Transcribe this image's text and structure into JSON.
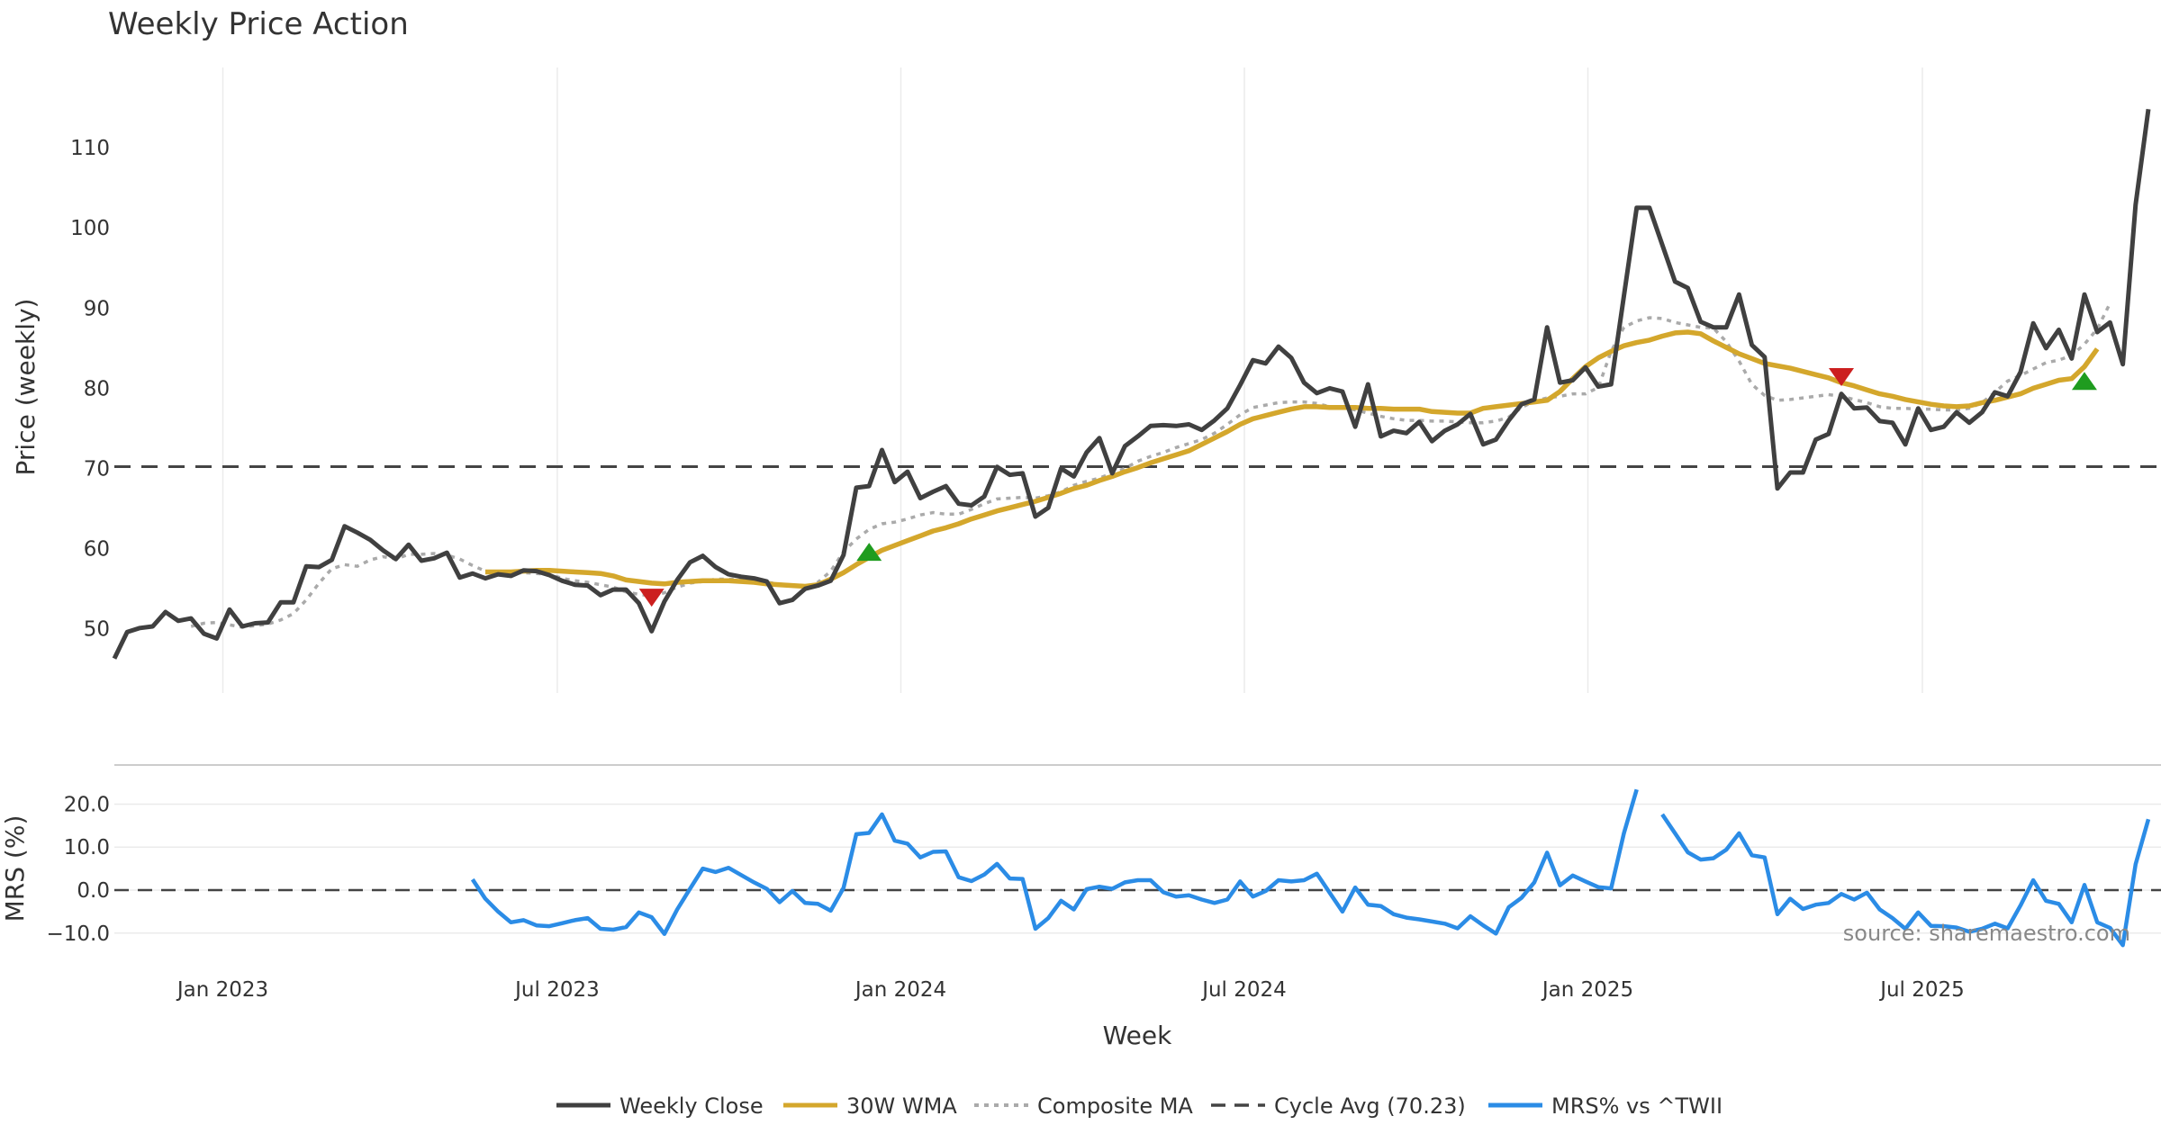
{
  "chart_data": {
    "type": "line",
    "title": "Weekly Price Action",
    "source": "source: sharemaestro.com",
    "xlabel": "Week",
    "x_ticks": [
      "Jan 2023",
      "Jul 2023",
      "Jan 2024",
      "Jul 2024",
      "Jan 2025",
      "Jul 2025"
    ],
    "price_panel": {
      "ylabel": "Price (weekly)",
      "y_ticks": [
        50,
        60,
        70,
        80,
        90,
        100,
        110
      ],
      "ylim": [
        42,
        120
      ],
      "weekly_close": [
        46.3,
        49.6,
        50.1,
        50.3,
        52.1,
        51.0,
        51.3,
        49.4,
        48.8,
        52.4,
        50.3,
        50.7,
        50.8,
        53.3,
        53.3,
        57.8,
        57.7,
        58.6,
        62.8,
        62.0,
        61.1,
        59.8,
        58.7,
        60.5,
        58.5,
        58.8,
        59.5,
        56.4,
        56.9,
        56.3,
        56.8,
        56.6,
        57.3,
        57.2,
        56.7,
        56.0,
        55.5,
        55.4,
        54.2,
        54.9,
        54.9,
        53.2,
        49.7,
        53.4,
        56.1,
        58.3,
        59.1,
        57.7,
        56.8,
        56.5,
        56.3,
        55.9,
        53.2,
        53.6,
        55.0,
        55.4,
        56.0,
        59.2,
        67.6,
        67.8,
        72.3,
        68.3,
        69.6,
        66.3,
        67.1,
        67.8,
        65.6,
        65.4,
        66.5,
        70.2,
        69.2,
        69.4,
        64.0,
        65.1,
        70.0,
        69.0,
        72.0,
        73.8,
        69.4,
        72.8,
        74.0,
        75.3,
        75.4,
        75.3,
        75.5,
        74.8,
        76.0,
        77.5,
        80.4,
        83.5,
        83.1,
        85.2,
        83.8,
        80.7,
        79.4,
        80.0,
        79.6,
        75.2,
        80.5,
        74.0,
        74.7,
        74.4,
        75.8,
        73.4,
        74.7,
        75.5,
        76.8,
        73.0,
        73.6,
        76.0,
        78.0,
        78.6,
        87.6,
        80.7,
        81.0,
        82.6,
        80.2,
        80.5,
        91.5,
        102.5,
        102.5,
        97.9,
        93.3,
        92.5,
        88.3,
        87.6,
        87.6,
        91.7,
        85.4,
        83.9,
        67.5,
        69.5,
        69.5,
        73.6,
        74.3,
        79.3,
        77.5,
        77.6,
        75.9,
        75.7,
        73.0,
        77.5,
        74.8,
        75.2,
        77.0,
        75.7,
        77.0,
        79.5,
        79.0,
        82.0,
        88.1,
        85.0,
        87.3,
        83.7,
        91.7,
        87.0,
        88.2,
        83.0,
        102.9,
        114.8
      ],
      "wma_30w": [
        null,
        null,
        null,
        null,
        null,
        null,
        null,
        null,
        null,
        null,
        null,
        null,
        null,
        null,
        null,
        null,
        null,
        null,
        null,
        null,
        null,
        null,
        null,
        null,
        null,
        null,
        null,
        null,
        null,
        57.1,
        57.1,
        57.1,
        57.2,
        57.3,
        57.3,
        57.2,
        57.1,
        57.0,
        56.9,
        56.6,
        56.1,
        55.9,
        55.7,
        55.6,
        55.8,
        55.9,
        56.0,
        56.0,
        56.0,
        55.9,
        55.8,
        55.6,
        55.5,
        55.4,
        55.3,
        55.5,
        56.2,
        57.0,
        58.0,
        58.9,
        59.8,
        60.4,
        61.0,
        61.6,
        62.2,
        62.6,
        63.1,
        63.7,
        64.2,
        64.7,
        65.1,
        65.5,
        65.9,
        66.4,
        66.9,
        67.5,
        67.9,
        68.5,
        69.0,
        69.6,
        70.1,
        70.7,
        71.2,
        71.7,
        72.2,
        73.0,
        73.8,
        74.6,
        75.5,
        76.2,
        76.6,
        77.0,
        77.4,
        77.7,
        77.7,
        77.6,
        77.6,
        77.6,
        77.5,
        77.5,
        77.4,
        77.4,
        77.4,
        77.1,
        77.0,
        76.9,
        76.9,
        77.5,
        77.7,
        77.9,
        78.1,
        78.3,
        78.5,
        79.6,
        81.2,
        82.7,
        83.8,
        84.6,
        85.3,
        85.7,
        86.0,
        86.5,
        86.9,
        87.0,
        86.8,
        85.9,
        85.1,
        84.3,
        83.7,
        83.1,
        82.8,
        82.5,
        82.1,
        81.7,
        81.3,
        80.7,
        80.3,
        79.8,
        79.3,
        79.0,
        78.6,
        78.3,
        78.0,
        77.8,
        77.7,
        77.8,
        78.2,
        78.5,
        78.9,
        79.3,
        80.0,
        80.5,
        81.0,
        81.2,
        82.7,
        84.9
      ],
      "composite_ma": [
        null,
        null,
        null,
        null,
        null,
        null,
        50.3,
        50.7,
        50.8,
        50.5,
        50.2,
        50.4,
        50.6,
        51.1,
        51.9,
        53.6,
        55.7,
        57.5,
        58.0,
        57.8,
        58.6,
        59.0,
        58.7,
        59.3,
        59.3,
        59.4,
        59.2,
        58.7,
        57.9,
        57.2,
        57.0,
        56.9,
        57.0,
        56.9,
        56.8,
        56.3,
        56.0,
        55.8,
        55.5,
        55.2,
        54.6,
        54.3,
        54.1,
        54.5,
        55.2,
        55.7,
        55.9,
        56.2,
        56.2,
        56.2,
        56.0,
        55.8,
        55.6,
        55.4,
        55.2,
        55.8,
        57.2,
        59.6,
        61.2,
        62.4,
        63.1,
        63.3,
        63.7,
        64.2,
        64.5,
        64.3,
        64.3,
        64.9,
        65.6,
        66.2,
        66.3,
        66.4,
        66.3,
        66.6,
        67.1,
        67.9,
        68.4,
        68.8,
        69.4,
        70.0,
        70.9,
        71.5,
        72.0,
        72.6,
        73.1,
        73.6,
        74.4,
        75.5,
        76.7,
        77.6,
        77.9,
        78.2,
        78.3,
        78.3,
        78.1,
        77.7,
        77.6,
        77.3,
        76.9,
        76.5,
        76.2,
        76.0,
        76.0,
        75.9,
        75.9,
        75.8,
        75.7,
        75.7,
        75.9,
        76.4,
        77.6,
        78.4,
        78.8,
        79.0,
        79.3,
        79.3,
        80.1,
        84.6,
        87.6,
        88.4,
        88.8,
        88.7,
        88.2,
        87.9,
        87.6,
        87.5,
        85.8,
        83.4,
        80.5,
        79.1,
        78.5,
        78.6,
        78.8,
        79.0,
        79.2,
        79.0,
        78.6,
        78.2,
        77.7,
        77.5,
        77.5,
        77.4,
        77.4,
        77.3,
        77.3,
        77.5,
        78.2,
        79.5,
        80.9,
        81.6,
        82.4,
        83.2,
        83.5,
        84.1,
        85.5,
        87.4,
        90.6
      ]
    },
    "cycle_avg": 70.23,
    "mrs_panel": {
      "ylabel": "MRS (%)",
      "y_ticks": [
        20.0,
        10.0,
        0.0,
        -10.0
      ],
      "y_tick_labels": [
        "20.0",
        "10.0",
        "0.0",
        "−10.0"
      ],
      "ylim": [
        -18,
        27
      ],
      "mrs_values": [
        null,
        null,
        null,
        null,
        null,
        null,
        null,
        null,
        null,
        null,
        null,
        null,
        null,
        null,
        null,
        null,
        null,
        null,
        null,
        null,
        null,
        null,
        null,
        null,
        null,
        null,
        null,
        null,
        null,
        null,
        null,
        null,
        null,
        null,
        null,
        null,
        null,
        null,
        null,
        null,
        null,
        null,
        null,
        null,
        null,
        null,
        null,
        null,
        null,
        null,
        null,
        null,
        null,
        null,
        null,
        null,
        null,
        null,
        null,
        null,
        null,
        null,
        null,
        null,
        null,
        null,
        null,
        null,
        null,
        null,
        null,
        null,
        null,
        null,
        null,
        null,
        null,
        null,
        null,
        null,
        null,
        null,
        null,
        null,
        null,
        null,
        null,
        null,
        null,
        null,
        null,
        null,
        null,
        null,
        null,
        null,
        null,
        null,
        null,
        null,
        null,
        null,
        null,
        null,
        null,
        null,
        null,
        null,
        null,
        null,
        null,
        null,
        null,
        null,
        null,
        null,
        null,
        null,
        null,
        null,
        null,
        null,
        null,
        null,
        null,
        null,
        null,
        null,
        null,
        null,
        null,
        null,
        null,
        null,
        null,
        null,
        null,
        null,
        null,
        null,
        null,
        null,
        null,
        null,
        null,
        null,
        null,
        null,
        null,
        null,
        null,
        null,
        null,
        null,
        null,
        null,
        null,
        null,
        null,
        null,
        null,
        null,
        null,
        null,
        null,
        null,
        null,
        null,
        null,
        null,
        null
      ]
    },
    "signals": {
      "sell": [
        {
          "week": 42,
          "price": 54.0
        },
        {
          "week": 135,
          "price": 81.5
        }
      ],
      "buy": [
        {
          "week": 59,
          "price": 59.5
        },
        {
          "week": 154,
          "price": 80.8
        }
      ]
    },
    "legend": [
      {
        "label": "Weekly Close",
        "color": "#404040",
        "style": "solid"
      },
      {
        "label": "30W WMA",
        "color": "#d4a72c",
        "style": "solid"
      },
      {
        "label": "Composite MA",
        "color": "#aaaaaa",
        "style": "dotted"
      },
      {
        "label": "Cycle Avg (70.23)",
        "color": "#444444",
        "style": "dashed"
      },
      {
        "label": "MRS% vs ^TWII",
        "color": "#2b8ce6",
        "style": "solid"
      }
    ],
    "grid": true,
    "legend_placement": "bottom-center"
  }
}
